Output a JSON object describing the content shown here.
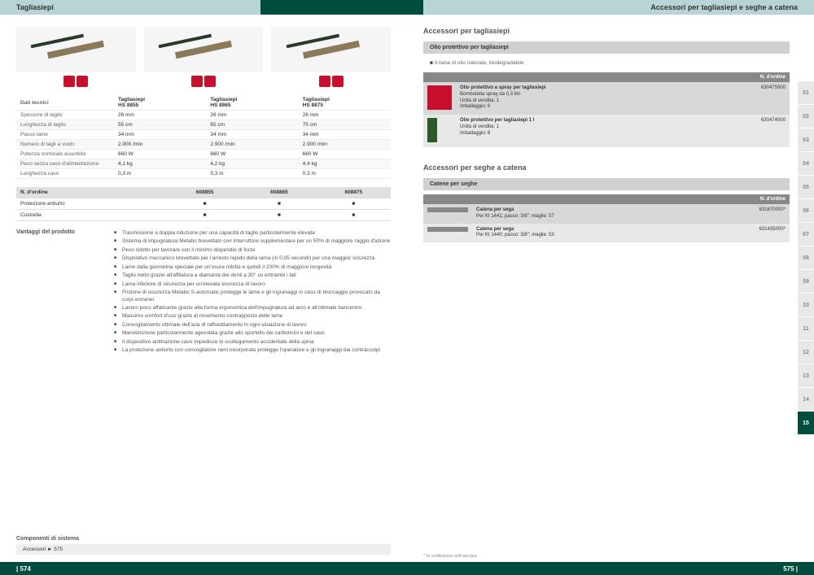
{
  "left": {
    "header": "Tagliasiepi",
    "products": [
      {
        "name": "Tagliasiepi",
        "model": "HS 8855"
      },
      {
        "name": "Tagliasiepi",
        "model": "HS 8865"
      },
      {
        "name": "Tagliasiepi",
        "model": "HS 8875"
      }
    ],
    "spec_label": "Dati tecnici",
    "specs": [
      {
        "label": "Spessore di taglio",
        "v": [
          "26 mm",
          "26 mm",
          "26 mm"
        ]
      },
      {
        "label": "Lunghezza di taglio",
        "v": [
          "55 cm",
          "65 cm",
          "75 cm"
        ]
      },
      {
        "label": "Passo lame",
        "v": [
          "34 mm",
          "34 mm",
          "34 mm"
        ]
      },
      {
        "label": "Numero di tagli a vuoto",
        "v": [
          "2.900 /min",
          "2.900 /min",
          "2.900 /min"
        ]
      },
      {
        "label": "Potenza nominale assorbita",
        "v": [
          "660 W",
          "660 W",
          "660 W"
        ]
      },
      {
        "label": "Peso senza cavo d'alimentazione",
        "v": [
          "4,1 kg",
          "4,2 kg",
          "4,4 kg"
        ]
      },
      {
        "label": "Lunghezza cavo",
        "v": [
          "0,3 m",
          "0,3 m",
          "0,3 m"
        ]
      }
    ],
    "order_header": "N. d'ordine",
    "order_codes": [
      "608855",
      "608865",
      "608875"
    ],
    "order_rows": [
      "Protezione antiurto",
      "Custodia"
    ],
    "benefits_label": "Vantaggi del prodotto",
    "benefits": [
      "Trasmissione a doppia riduzione per una capacità di taglio particolarmente elevata",
      "Sistema di impugnatura Metabo brevettato con interruttore supplementare per un 50% di maggiore raggio d'azione",
      "Peso ridotto per lavorare con il minimo dispendio di forze",
      "Dispositivo meccanico brevettato per l'arresto rapido della lama (in 0,05 secondi) per una maggior sicurezza",
      "Lame dalla geometria speciale per un'usura ridotta e quindi il 200% di maggiore longevità",
      "Taglio netto grazie all'affilatura a diamante dei denti a 30° su entrambi i lati",
      "Lama inferiore di sicurezza per un'elevata sicurezza di lavoro",
      "Frizione di sicurezza Metabo S-automatic protegge le lame e gli ingranaggi in caso di bloccaggio provocato da corpi estranei",
      "Lavoro poco affaticante grazie alla forma ergonomica dell'impugnatura ad arco e all'ottimale baricentro",
      "Massimo comfort d'uso grazie al movimento contrapposto delle lame",
      "Convogliamento ottimale dell'aria di raffreddamento in ogni situazione di lavoro",
      "Manutenzione particolarmente agevolata grazie allo sportello dei carboncini e del cavo",
      "Il dispositivo antitrazione cavo impedisce lo scollegamento accidentale della spina",
      "La protezione antiurto con convogliatore rami incorporato protegge l'operatore e gli ingranaggi dai contraccolpi"
    ],
    "components_title": "Componenti di sistema",
    "components_link": "Accessori ► 575",
    "page_num": "| 574"
  },
  "right": {
    "header": "Accessori per tagliasiepi e seghe a catena",
    "sec1_title": "Accessori per tagliasiepi",
    "sec1_sub": "Olio protettivo per tagliasiepi",
    "sec1_note": "A base di olio naturale, biodegradabile",
    "order_col": "N. d'ordine",
    "oils": [
      {
        "desc": "Olio protettivo a spray per tagliasiepi",
        "line2": "Bomboletta spray da 0,3 litri",
        "line3": "Unità di vendita: 1",
        "line4": "Imballaggio: 6",
        "code": "630475000"
      },
      {
        "desc": "Olio protettivo per tagliasiepi 1 l",
        "line2": "Unità di vendita: 1",
        "line3": "Imballaggio: 6",
        "line4": "",
        "code": "630474000"
      }
    ],
    "sec2_title": "Accessori per seghe a catena",
    "sec2_sub": "Catene per seghe",
    "chains": [
      {
        "desc": "Catena per sega",
        "line2": "Per Kt 1441; passo: 3/8\"; maglie: 57",
        "code": "631670000*"
      },
      {
        "desc": "Catena per sega",
        "line2": "Per Kt 1440; passo: 3/8\"; maglie: 53",
        "code": "631435000*"
      }
    ],
    "tabs": [
      "01",
      "02",
      "03",
      "04",
      "05",
      "06",
      "07",
      "08",
      "09",
      "10",
      "11",
      "12",
      "13",
      "14",
      "15"
    ],
    "active_tab": 14,
    "footnote": "* In confezione self-service",
    "page_num": "575 |"
  }
}
